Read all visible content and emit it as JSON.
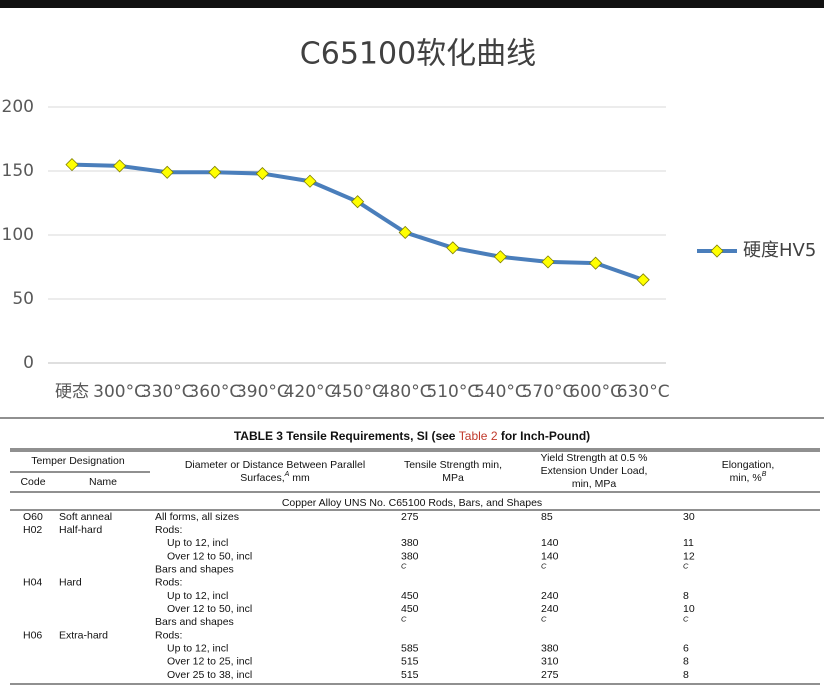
{
  "chart_data": {
    "type": "line",
    "title": "C65100软化曲线",
    "categories": [
      "硬态",
      "300°C",
      "330°C",
      "360°C",
      "390°C",
      "420°C",
      "450°C",
      "480°C",
      "510°C",
      "540°C",
      "570°C",
      "600°C",
      "630°C"
    ],
    "series": [
      {
        "name": "硬度HV5",
        "color": "#4a7ebb",
        "marker_color": "#ffff00",
        "values": [
          155,
          154,
          149,
          149,
          148,
          142,
          126,
          102,
          90,
          83,
          79,
          78,
          65
        ]
      }
    ],
    "ylim": [
      0,
      200
    ],
    "yticks": [
      0,
      50,
      100,
      150,
      200
    ],
    "grid": true,
    "legend": "right"
  },
  "table": {
    "title": {
      "before": "TABLE 3 Tensile Requirements, SI (see ",
      "link": "Table 2",
      "after": " for Inch-Pound)"
    },
    "headers": {
      "temper": "Temper Designation",
      "code": "Code",
      "name": "Name",
      "diameter": {
        "line1": "Diameter or Distance Between Parallel",
        "line2": "Surfaces,",
        "sup": "A",
        "unit": " mm"
      },
      "tensile": {
        "line1": "Tensile Strength min,",
        "line2": "MPa"
      },
      "yield": {
        "line1": "Yield Strength at 0.5 %",
        "line2": "Extension Under Load,",
        "line3": "min, MPa"
      },
      "elongation": {
        "line1": "Elongation,",
        "line2": "min, %",
        "sup": "B"
      }
    },
    "section": "Copper Alloy UNS No. C65100 Rods, Bars, and Shapes",
    "rows": [
      {
        "code": "O60",
        "name": "Soft anneal",
        "desc": "All forms, all sizes",
        "tensile": 275,
        "yield": 85,
        "elong": 30
      },
      {
        "code": "H02",
        "name": "Half-hard",
        "desc": "Rods:",
        "items": [
          {
            "desc": "Up to 12, incl",
            "tensile": 380,
            "yield": 140,
            "elong": 11
          },
          {
            "desc": "Over 12 to 50, incl",
            "tensile": 380,
            "yield": 140,
            "elong": 12
          }
        ]
      },
      {
        "desc": "Bars and shapes",
        "tensile": "C",
        "yield": "C",
        "elong": "C"
      },
      {
        "code": "H04",
        "name": "Hard",
        "desc": "Rods:",
        "items": [
          {
            "desc": "Up to 12, incl",
            "tensile": 450,
            "yield": 240,
            "elong": 8
          },
          {
            "desc": "Over 12 to 50, incl",
            "tensile": 450,
            "yield": 240,
            "elong": 10
          }
        ]
      },
      {
        "desc": "Bars and shapes",
        "tensile": "C",
        "yield": "C",
        "elong": "C"
      },
      {
        "code": "H06",
        "name": "Extra-hard",
        "desc": "Rods:",
        "items": [
          {
            "desc": "Up to 12, incl",
            "tensile": 585,
            "yield": 380,
            "elong": 6
          },
          {
            "desc": "Over 12 to 25, incl",
            "tensile": 515,
            "yield": 310,
            "elong": 8
          },
          {
            "desc": "Over 25 to 38, incl",
            "tensile": 515,
            "yield": 275,
            "elong": 8
          }
        ]
      }
    ]
  }
}
